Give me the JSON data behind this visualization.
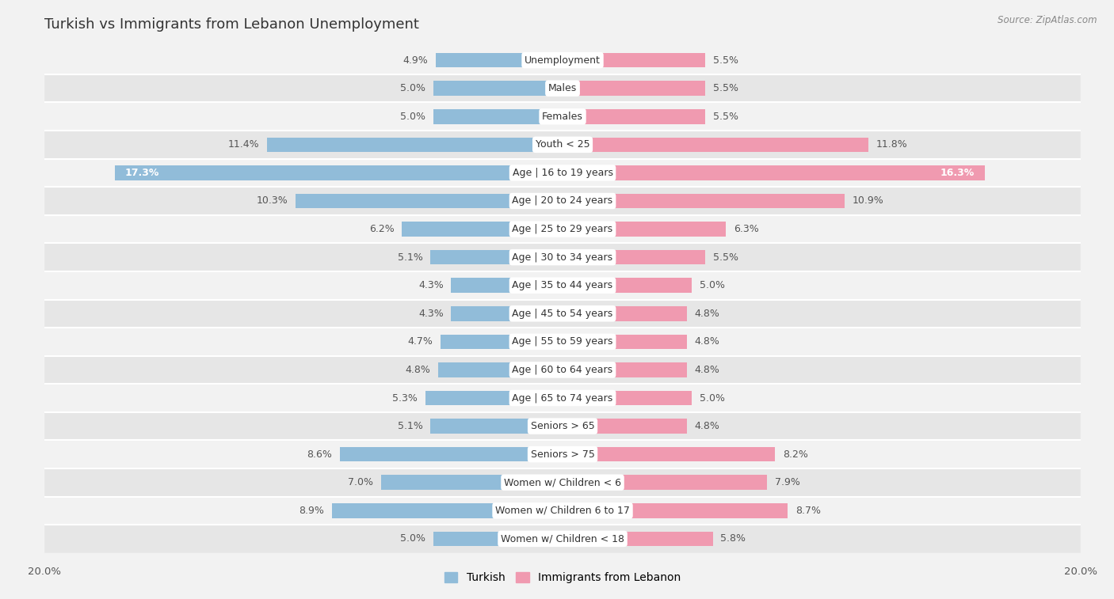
{
  "title": "Turkish vs Immigrants from Lebanon Unemployment",
  "source": "Source: ZipAtlas.com",
  "categories": [
    "Unemployment",
    "Males",
    "Females",
    "Youth < 25",
    "Age | 16 to 19 years",
    "Age | 20 to 24 years",
    "Age | 25 to 29 years",
    "Age | 30 to 34 years",
    "Age | 35 to 44 years",
    "Age | 45 to 54 years",
    "Age | 55 to 59 years",
    "Age | 60 to 64 years",
    "Age | 65 to 74 years",
    "Seniors > 65",
    "Seniors > 75",
    "Women w/ Children < 6",
    "Women w/ Children 6 to 17",
    "Women w/ Children < 18"
  ],
  "turkish_values": [
    4.9,
    5.0,
    5.0,
    11.4,
    17.3,
    10.3,
    6.2,
    5.1,
    4.3,
    4.3,
    4.7,
    4.8,
    5.3,
    5.1,
    8.6,
    7.0,
    8.9,
    5.0
  ],
  "lebanon_values": [
    5.5,
    5.5,
    5.5,
    11.8,
    16.3,
    10.9,
    6.3,
    5.5,
    5.0,
    4.8,
    4.8,
    4.8,
    5.0,
    4.8,
    8.2,
    7.9,
    8.7,
    5.8
  ],
  "turkish_color": "#91bcd9",
  "lebanon_color": "#f09ab0",
  "turkish_label": "Turkish",
  "lebanon_label": "Immigrants from Lebanon",
  "xlim": 20.0,
  "bg_light": "#f2f2f2",
  "bg_dark": "#e6e6e6",
  "row_sep_color": "#ffffff",
  "bar_height": 0.52,
  "title_fontsize": 13,
  "label_fontsize": 9.0,
  "value_fontsize": 9.0,
  "tick_fontsize": 9.5
}
